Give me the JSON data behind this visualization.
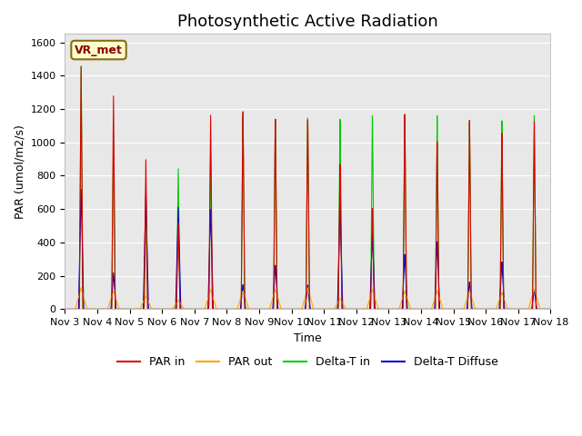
{
  "title": "Photosynthetic Active Radiation",
  "ylabel": "PAR (umol/m2/s)",
  "xlabel": "Time",
  "ylim": [
    0,
    1650
  ],
  "xlim": [
    0,
    15
  ],
  "x_tick_labels": [
    "Nov 3",
    "Nov 4",
    "Nov 5",
    "Nov 6",
    "Nov 7",
    "Nov 8",
    "Nov 9",
    "Nov 10",
    "Nov 11",
    "Nov 12",
    "Nov 13",
    "Nov 14",
    "Nov 15",
    "Nov 16",
    "Nov 17",
    "Nov 18"
  ],
  "background_color": "#e8e8e8",
  "par_in_color": "#dd0000",
  "par_out_color": "#ffa500",
  "delta_t_in_color": "#00cc00",
  "delta_t_diffuse_color": "#0000cc",
  "station_label": "VR_met",
  "day_peaks_par_in": [
    1460,
    1290,
    910,
    530,
    1195,
    1225,
    1185,
    1185,
    905,
    625,
    1200,
    1025,
    1150,
    1065,
    1130
  ],
  "day_peaks_par_out": [
    130,
    110,
    80,
    55,
    120,
    110,
    120,
    130,
    65,
    120,
    110,
    110,
    110,
    100,
    120
  ],
  "day_peaks_delta_t_in": [
    1460,
    1010,
    590,
    860,
    965,
    1195,
    1185,
    1200,
    1185,
    1200,
    1200,
    1185,
    1140,
    1140,
    1165
  ],
  "day_peaks_delta_t_diffuse": [
    720,
    220,
    700,
    620,
    610,
    150,
    270,
    150,
    630,
    455,
    335,
    410,
    165,
    285,
    120
  ],
  "title_fontsize": 13,
  "tick_fontsize": 8,
  "label_fontsize": 9,
  "legend_fontsize": 9
}
